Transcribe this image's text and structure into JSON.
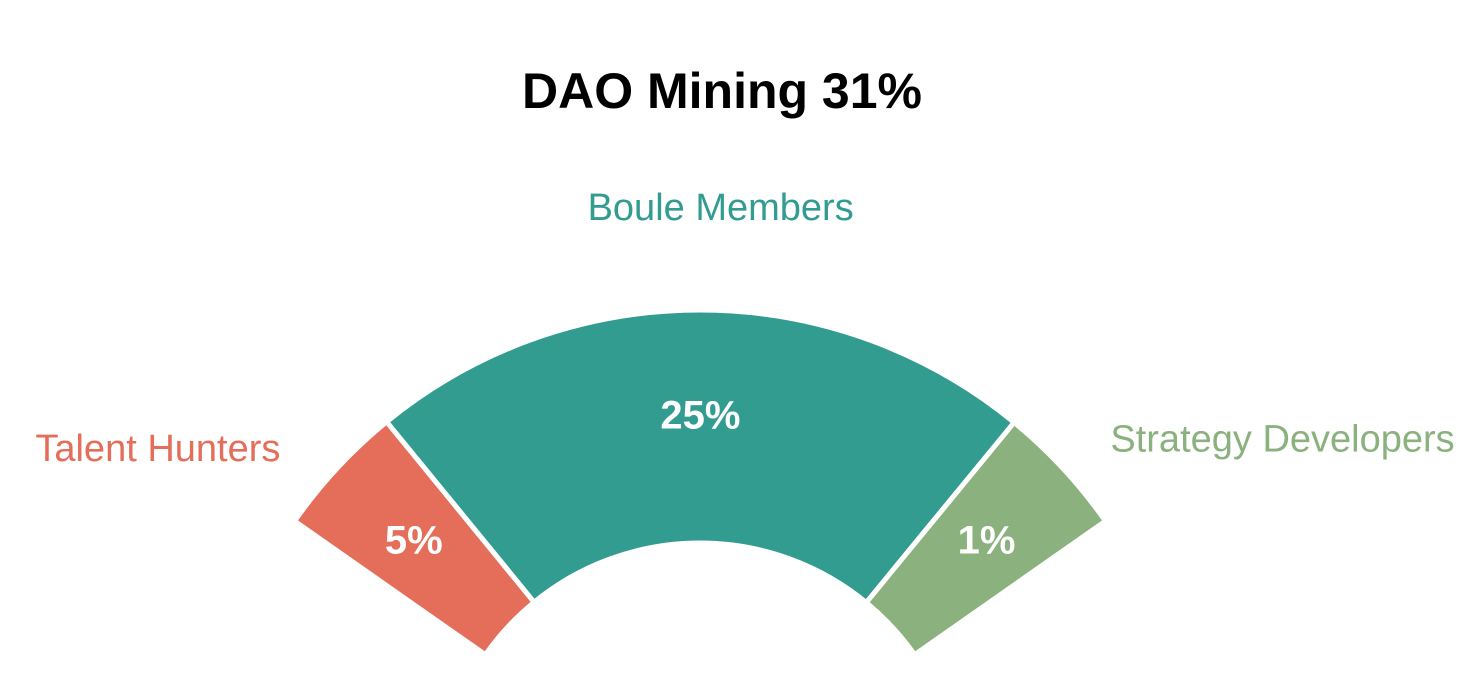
{
  "chart_data": {
    "type": "pie",
    "title": "DAO Mining 31%",
    "categories": [
      "Talent Hunters",
      "Boule Members",
      "Strategy Developers"
    ],
    "values": [
      5,
      25,
      1
    ],
    "value_labels": [
      "5%",
      "25%",
      "1%"
    ],
    "colors": [
      "#E46E5A",
      "#329C91",
      "#8BB17F"
    ],
    "legend": "none"
  }
}
